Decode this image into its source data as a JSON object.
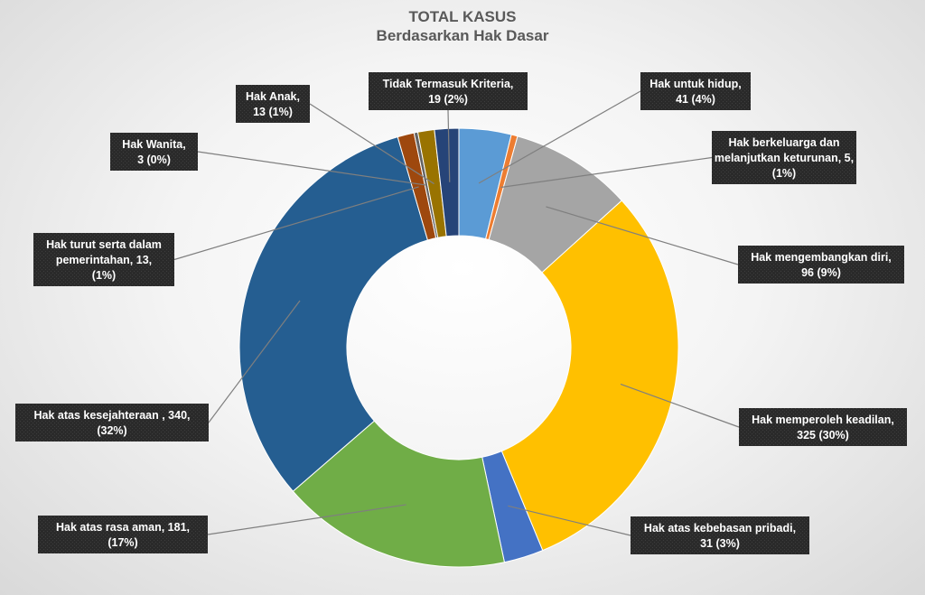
{
  "chart_data": {
    "type": "pie",
    "title": "TOTAL KASUS",
    "subtitle": "Berdasarkan Hak Dasar",
    "donut": true,
    "slices": [
      {
        "label_lines": [
          "Hak untuk hidup,",
          "41 (4%)"
        ],
        "value": 41,
        "percent": "4%",
        "color": "#5b9bd5"
      },
      {
        "label_lines": [
          "Hak berkeluarga dan",
          "melanjutkan keturunan, 5,",
          "(1%)"
        ],
        "value": 5,
        "percent": "1%",
        "color": "#ed7d31"
      },
      {
        "label_lines": [
          "Hak mengembangkan diri,",
          "96 (9%)"
        ],
        "value": 96,
        "percent": "9%",
        "color": "#a5a5a5"
      },
      {
        "label_lines": [
          "Hak memperoleh keadilan,",
          "325 (30%)"
        ],
        "value": 325,
        "percent": "30%",
        "color": "#ffc000"
      },
      {
        "label_lines": [
          "Hak atas kebebasan pribadi,",
          "31 (3%)"
        ],
        "value": 31,
        "percent": "3%",
        "color": "#4472c4"
      },
      {
        "label_lines": [
          "Hak atas rasa aman, 181,",
          "(17%)"
        ],
        "value": 181,
        "percent": "17%",
        "color": "#70ad47"
      },
      {
        "label_lines": [
          "Hak atas kesejahteraan , 340,",
          "(32%)"
        ],
        "value": 340,
        "percent": "32%",
        "color": "#255e91"
      },
      {
        "label_lines": [
          "Hak turut serta dalam",
          "pemerintahan, 13,",
          "(1%)"
        ],
        "value": 13,
        "percent": "1%",
        "color": "#9e480e"
      },
      {
        "label_lines": [
          "Hak Wanita,",
          "3 (0%)"
        ],
        "value": 3,
        "percent": "0%",
        "color": "#636363"
      },
      {
        "label_lines": [
          "Hak Anak,",
          "13 (1%)"
        ],
        "value": 13,
        "percent": "1%",
        "color": "#997300"
      },
      {
        "label_lines": [
          "Tidak Termasuk Kriteria,",
          "19 (2%)"
        ],
        "value": 19,
        "percent": "2%",
        "color": "#264478"
      }
    ]
  }
}
